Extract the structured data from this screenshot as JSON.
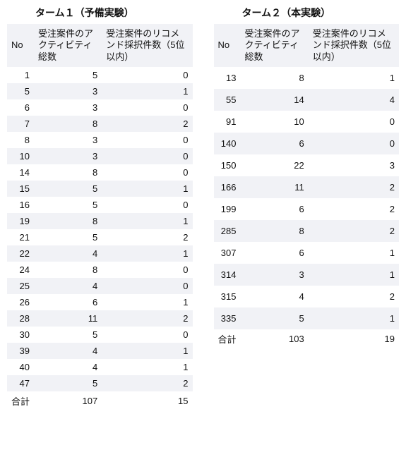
{
  "left": {
    "title": "ターム１（予備実験）",
    "headers": [
      "No",
      "受注案件のアクティビティ総数",
      "受注案件のリコメンド採択件数（5位以内）"
    ],
    "rows": [
      [
        "1",
        "5",
        "0"
      ],
      [
        "5",
        "3",
        "1"
      ],
      [
        "6",
        "3",
        "0"
      ],
      [
        "7",
        "8",
        "2"
      ],
      [
        "8",
        "3",
        "0"
      ],
      [
        "10",
        "3",
        "0"
      ],
      [
        "14",
        "8",
        "0"
      ],
      [
        "15",
        "5",
        "1"
      ],
      [
        "16",
        "5",
        "0"
      ],
      [
        "19",
        "8",
        "1"
      ],
      [
        "21",
        "5",
        "2"
      ],
      [
        "22",
        "4",
        "1"
      ],
      [
        "24",
        "8",
        "0"
      ],
      [
        "25",
        "4",
        "0"
      ],
      [
        "26",
        "6",
        "1"
      ],
      [
        "28",
        "11",
        "2"
      ],
      [
        "30",
        "5",
        "0"
      ],
      [
        "39",
        "4",
        "1"
      ],
      [
        "40",
        "4",
        "1"
      ],
      [
        "47",
        "5",
        "2"
      ]
    ],
    "sum": [
      "合計",
      "107",
      "15"
    ]
  },
  "right": {
    "title": "ターム２（本実験）",
    "headers": [
      "No",
      "受注案件のアクティビティ総数",
      "受注案件のリコメンド採択件数（5位以内）"
    ],
    "rows": [
      [
        "13",
        "8",
        "1"
      ],
      [
        "55",
        "14",
        "4"
      ],
      [
        "91",
        "10",
        "0"
      ],
      [
        "140",
        "6",
        "0"
      ],
      [
        "150",
        "22",
        "3"
      ],
      [
        "166",
        "11",
        "2"
      ],
      [
        "199",
        "6",
        "2"
      ],
      [
        "285",
        "8",
        "2"
      ],
      [
        "307",
        "6",
        "1"
      ],
      [
        "314",
        "3",
        "1"
      ],
      [
        "315",
        "4",
        "2"
      ],
      [
        "335",
        "5",
        "1"
      ]
    ],
    "sum": [
      "合計",
      "103",
      "19"
    ]
  },
  "style": {
    "row_odd_bg": "#f1f2f6",
    "row_even_bg": "#ffffff"
  }
}
